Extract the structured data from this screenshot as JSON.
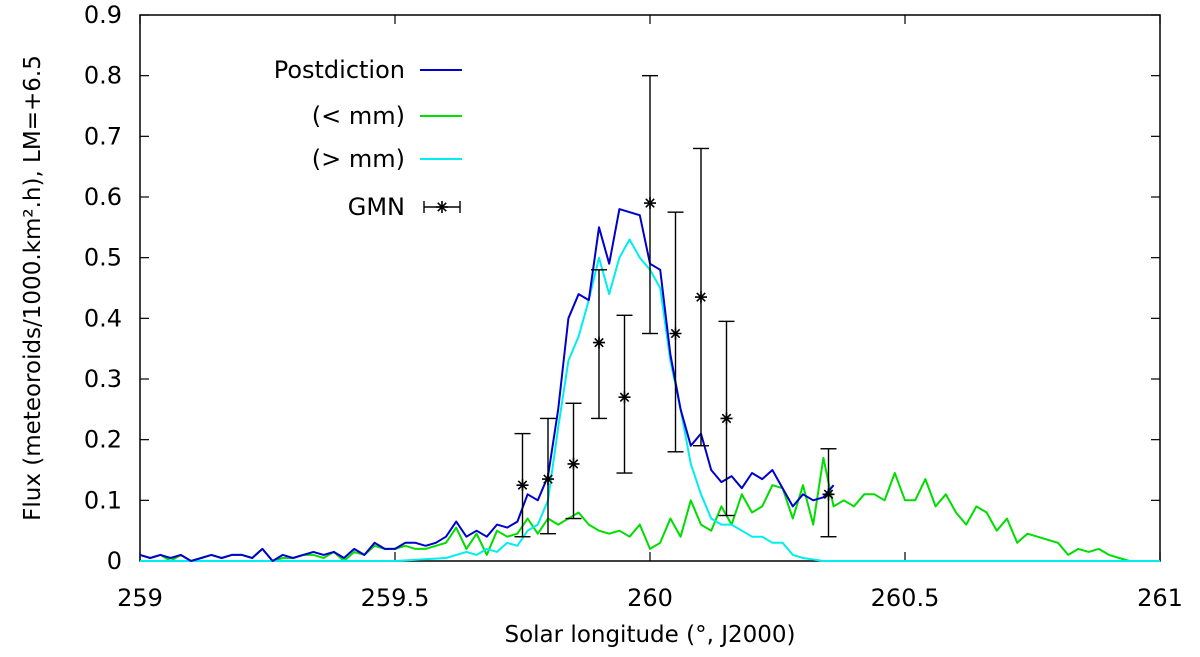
{
  "chart_data": {
    "type": "line",
    "title": "",
    "xlabel": "Solar longitude (°, J2000)",
    "ylabel": "Flux (meteoroids/1000.km².h), LM=+6.5",
    "xlim": [
      259,
      261
    ],
    "ylim": [
      0,
      0.9
    ],
    "xticks": [
      259,
      259.5,
      260,
      260.5,
      261
    ],
    "xtick_labels": [
      "259",
      "259.5",
      "260",
      "260.5",
      "261"
    ],
    "yticks": [
      0,
      0.1,
      0.2,
      0.3,
      0.4,
      0.5,
      0.6,
      0.7,
      0.8,
      0.9
    ],
    "ytick_labels": [
      "0",
      "0.1",
      "0.2",
      "0.3",
      "0.4",
      "0.5",
      "0.6",
      "0.7",
      "0.8",
      "0.9"
    ],
    "grid": false,
    "legend_position": "top-left",
    "series": [
      {
        "name": "Postdiction",
        "color": "#0000cc",
        "x": [
          259.0,
          259.02,
          259.04,
          259.06,
          259.08,
          259.1,
          259.12,
          259.14,
          259.16,
          259.18,
          259.2,
          259.22,
          259.24,
          259.26,
          259.28,
          259.3,
          259.32,
          259.34,
          259.36,
          259.38,
          259.4,
          259.42,
          259.44,
          259.46,
          259.48,
          259.5,
          259.52,
          259.54,
          259.56,
          259.58,
          259.6,
          259.62,
          259.64,
          259.66,
          259.68,
          259.7,
          259.72,
          259.74,
          259.76,
          259.78,
          259.8,
          259.82,
          259.84,
          259.86,
          259.88,
          259.9,
          259.92,
          259.94,
          259.96,
          259.98,
          260.0,
          260.02,
          260.04,
          260.06,
          260.08,
          260.1,
          260.12,
          260.14,
          260.16,
          260.18,
          260.2,
          260.22,
          260.24,
          260.26,
          260.28,
          260.3,
          260.32,
          260.34,
          260.36
        ],
        "y": [
          0.01,
          0.005,
          0.01,
          0.005,
          0.01,
          0.0,
          0.005,
          0.01,
          0.005,
          0.01,
          0.01,
          0.005,
          0.02,
          0.0,
          0.01,
          0.005,
          0.01,
          0.015,
          0.01,
          0.015,
          0.005,
          0.02,
          0.01,
          0.03,
          0.02,
          0.02,
          0.03,
          0.03,
          0.025,
          0.03,
          0.04,
          0.065,
          0.04,
          0.05,
          0.04,
          0.06,
          0.055,
          0.065,
          0.11,
          0.1,
          0.14,
          0.25,
          0.4,
          0.44,
          0.43,
          0.55,
          0.49,
          0.58,
          0.575,
          0.57,
          0.49,
          0.48,
          0.34,
          0.25,
          0.19,
          0.21,
          0.15,
          0.13,
          0.14,
          0.12,
          0.145,
          0.135,
          0.15,
          0.12,
          0.09,
          0.11,
          0.1,
          0.105,
          0.125
        ]
      },
      {
        "name": "(< mm)",
        "color": "#00dd00",
        "x": [
          259.0,
          259.02,
          259.04,
          259.06,
          259.08,
          259.1,
          259.12,
          259.14,
          259.16,
          259.18,
          259.2,
          259.22,
          259.24,
          259.26,
          259.28,
          259.3,
          259.32,
          259.34,
          259.36,
          259.38,
          259.4,
          259.42,
          259.44,
          259.46,
          259.48,
          259.5,
          259.52,
          259.54,
          259.56,
          259.58,
          259.6,
          259.62,
          259.64,
          259.66,
          259.68,
          259.7,
          259.72,
          259.74,
          259.76,
          259.78,
          259.8,
          259.82,
          259.84,
          259.86,
          259.88,
          259.9,
          259.92,
          259.94,
          259.96,
          259.98,
          260.0,
          260.02,
          260.04,
          260.06,
          260.08,
          260.1,
          260.12,
          260.14,
          260.16,
          260.18,
          260.2,
          260.22,
          260.24,
          260.26,
          260.28,
          260.3,
          260.32,
          260.34,
          260.36,
          260.38,
          260.4,
          260.42,
          260.44,
          260.46,
          260.48,
          260.5,
          260.52,
          260.54,
          260.56,
          260.58,
          260.6,
          260.62,
          260.64,
          260.66,
          260.68,
          260.7,
          260.72,
          260.74,
          260.76,
          260.78,
          260.8,
          260.82,
          260.84,
          260.86,
          260.88,
          260.9,
          260.92,
          260.94,
          260.96,
          260.98,
          261.0
        ],
        "y": [
          0.01,
          0.005,
          0.01,
          0.0,
          0.01,
          0.0,
          0.005,
          0.01,
          0.005,
          0.01,
          0.01,
          0.005,
          0.02,
          0.0,
          0.005,
          0.005,
          0.01,
          0.01,
          0.005,
          0.015,
          0.0,
          0.015,
          0.01,
          0.025,
          0.02,
          0.02,
          0.025,
          0.02,
          0.02,
          0.025,
          0.03,
          0.055,
          0.02,
          0.045,
          0.01,
          0.05,
          0.04,
          0.045,
          0.07,
          0.045,
          0.07,
          0.06,
          0.07,
          0.08,
          0.06,
          0.05,
          0.045,
          0.05,
          0.04,
          0.06,
          0.02,
          0.03,
          0.07,
          0.04,
          0.1,
          0.06,
          0.05,
          0.09,
          0.06,
          0.11,
          0.08,
          0.09,
          0.125,
          0.12,
          0.07,
          0.125,
          0.06,
          0.17,
          0.09,
          0.1,
          0.09,
          0.11,
          0.11,
          0.1,
          0.145,
          0.1,
          0.1,
          0.135,
          0.09,
          0.11,
          0.08,
          0.06,
          0.09,
          0.08,
          0.05,
          0.07,
          0.03,
          0.045,
          0.04,
          0.035,
          0.03,
          0.01,
          0.02,
          0.015,
          0.02,
          0.01,
          0.005,
          0.0,
          0.0,
          0.0,
          0.0
        ]
      },
      {
        "name": "(> mm)",
        "color": "#00eeee",
        "x": [
          259.0,
          259.1,
          259.2,
          259.3,
          259.4,
          259.5,
          259.6,
          259.62,
          259.64,
          259.66,
          259.68,
          259.7,
          259.72,
          259.74,
          259.76,
          259.78,
          259.8,
          259.82,
          259.84,
          259.86,
          259.88,
          259.9,
          259.92,
          259.94,
          259.96,
          259.98,
          260.0,
          260.02,
          260.04,
          260.06,
          260.08,
          260.1,
          260.12,
          260.14,
          260.16,
          260.18,
          260.2,
          260.22,
          260.24,
          260.26,
          260.28,
          260.3,
          260.34,
          260.4,
          260.5,
          261.0
        ],
        "y": [
          0.0,
          0.0,
          0.0,
          0.0,
          0.0,
          0.0,
          0.005,
          0.01,
          0.015,
          0.01,
          0.02,
          0.015,
          0.03,
          0.025,
          0.05,
          0.06,
          0.1,
          0.22,
          0.33,
          0.37,
          0.43,
          0.5,
          0.44,
          0.5,
          0.53,
          0.5,
          0.48,
          0.45,
          0.33,
          0.25,
          0.16,
          0.11,
          0.07,
          0.06,
          0.06,
          0.05,
          0.04,
          0.04,
          0.03,
          0.03,
          0.01,
          0.005,
          0.0,
          0.0,
          0.0,
          0.0
        ]
      }
    ],
    "gmn": {
      "name": "GMN",
      "x": [
        259.75,
        259.8,
        259.85,
        259.9,
        259.95,
        260.0,
        260.05,
        260.1,
        260.15,
        260.35
      ],
      "y": [
        0.125,
        0.135,
        0.16,
        0.36,
        0.27,
        0.59,
        0.375,
        0.435,
        0.235,
        0.11
      ],
      "err_low": [
        0.04,
        0.045,
        0.07,
        0.235,
        0.145,
        0.375,
        0.18,
        0.19,
        0.075,
        0.04
      ],
      "err_high": [
        0.21,
        0.235,
        0.26,
        0.48,
        0.405,
        0.8,
        0.575,
        0.68,
        0.395,
        0.185
      ]
    }
  }
}
